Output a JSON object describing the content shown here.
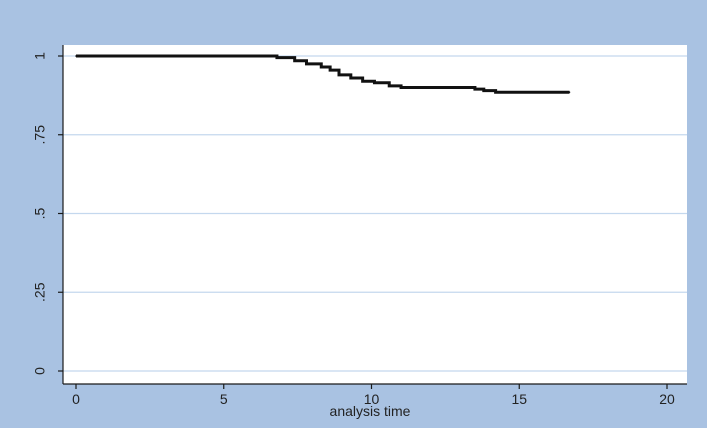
{
  "colors": {
    "background": "#a9c2e2",
    "plot_area": "#ffffff",
    "gridline": "#c4d8ee",
    "axis": "#1a1a1a",
    "series": "#111111"
  },
  "chart_data": {
    "type": "line",
    "title": "",
    "xlabel": "analysis time",
    "ylabel": "",
    "xlim": [
      0,
      20
    ],
    "ylim": [
      0,
      1
    ],
    "grid": true,
    "x_ticks": [
      0,
      5,
      10,
      15,
      20
    ],
    "x_tick_labels": [
      "0",
      "5",
      "10",
      "15",
      "20"
    ],
    "y_ticks": [
      0,
      0.25,
      0.5,
      0.75,
      1
    ],
    "y_tick_labels": [
      "0",
      ".25",
      ".5",
      ".75",
      "1"
    ],
    "series": [
      {
        "step": true,
        "x": [
          0,
          6.8,
          7.4,
          7.8,
          8.3,
          8.6,
          8.9,
          9.3,
          9.7,
          10.1,
          10.6,
          11.0,
          13.5,
          13.8,
          14.2,
          16.7
        ],
        "y": [
          1.0,
          0.995,
          0.985,
          0.975,
          0.965,
          0.955,
          0.94,
          0.93,
          0.92,
          0.915,
          0.905,
          0.9,
          0.895,
          0.89,
          0.885,
          0.885
        ]
      }
    ]
  }
}
